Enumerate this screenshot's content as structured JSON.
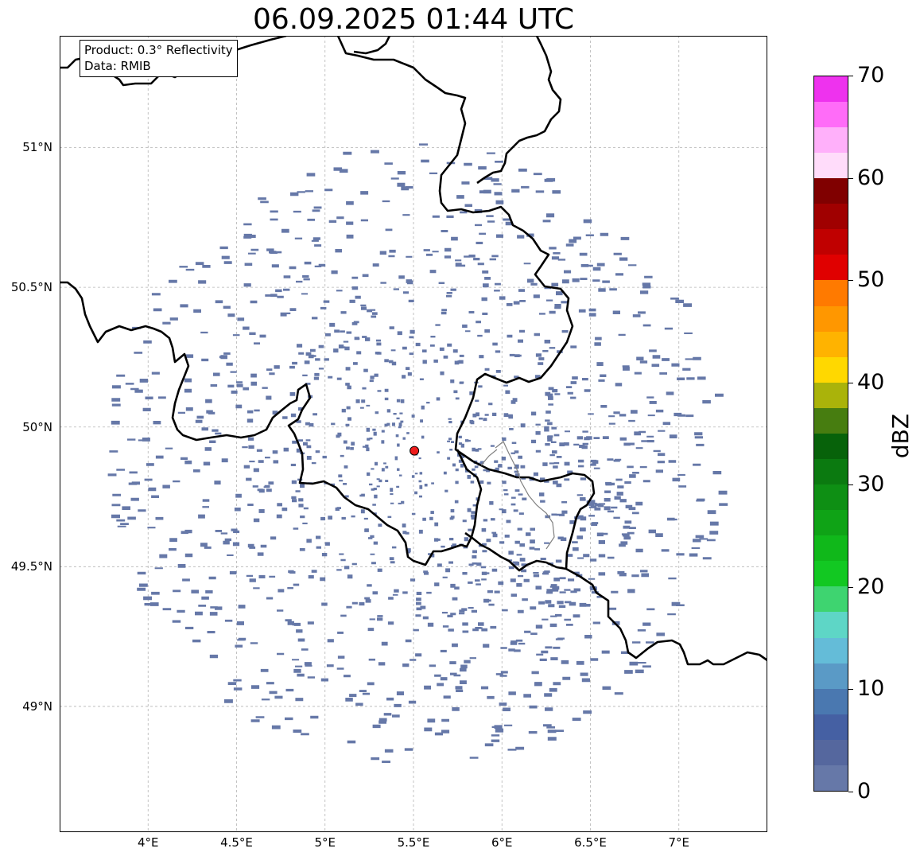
{
  "title": "06.09.2025 01:44 UTC",
  "info_box": {
    "product": "Product: 0.3° Reflectivity",
    "data": "Data: RMIB"
  },
  "map": {
    "lon_range": [
      3.5,
      7.5
    ],
    "lat_range": [
      48.55,
      51.4
    ],
    "lon_ticks": [
      {
        "value": 4.0,
        "label": "4°E"
      },
      {
        "value": 4.5,
        "label": "4.5°E"
      },
      {
        "value": 5.0,
        "label": "5°E"
      },
      {
        "value": 5.5,
        "label": "5.5°E"
      },
      {
        "value": 6.0,
        "label": "6°E"
      },
      {
        "value": 6.5,
        "label": "6.5°E"
      },
      {
        "value": 7.0,
        "label": "7°E"
      }
    ],
    "lat_ticks": [
      {
        "value": 51.0,
        "label": "51°N"
      },
      {
        "value": 50.5,
        "label": "50.5°N"
      },
      {
        "value": 50.0,
        "label": "50°N"
      },
      {
        "value": 49.5,
        "label": "49.5°N"
      },
      {
        "value": 49.0,
        "label": "49°N"
      }
    ],
    "gridlines": true,
    "radar_site": {
      "lon": 5.505,
      "lat": 49.915,
      "color": "#ee1c1c"
    },
    "echo_color": "#6678a8",
    "echo_coverage": {
      "center_lon": 5.5,
      "center_lat": 49.9,
      "radius_lon": 1.75,
      "radius_lat": 1.12
    }
  },
  "colorbar": {
    "unit": "dBZ",
    "min": 0,
    "max": 70,
    "step": 2.5,
    "ticks": [
      0,
      10,
      20,
      30,
      40,
      50,
      60,
      70
    ],
    "colors": [
      "#6678a8",
      "#55679e",
      "#4560a3",
      "#4a78b0",
      "#5a9ac6",
      "#64bcd8",
      "#5ed6c6",
      "#3ed470",
      "#12c822",
      "#10b81a",
      "#0fa316",
      "#0e8f14",
      "#0b7a10",
      "#07620a",
      "#477d10",
      "#aab30a",
      "#ffd800",
      "#ffb300",
      "#ff9700",
      "#ff7a00",
      "#e00000",
      "#c00000",
      "#a00000",
      "#800000",
      "#ffdcfa",
      "#ffb0fa",
      "#ff6cf8",
      "#ee32ee"
    ]
  }
}
